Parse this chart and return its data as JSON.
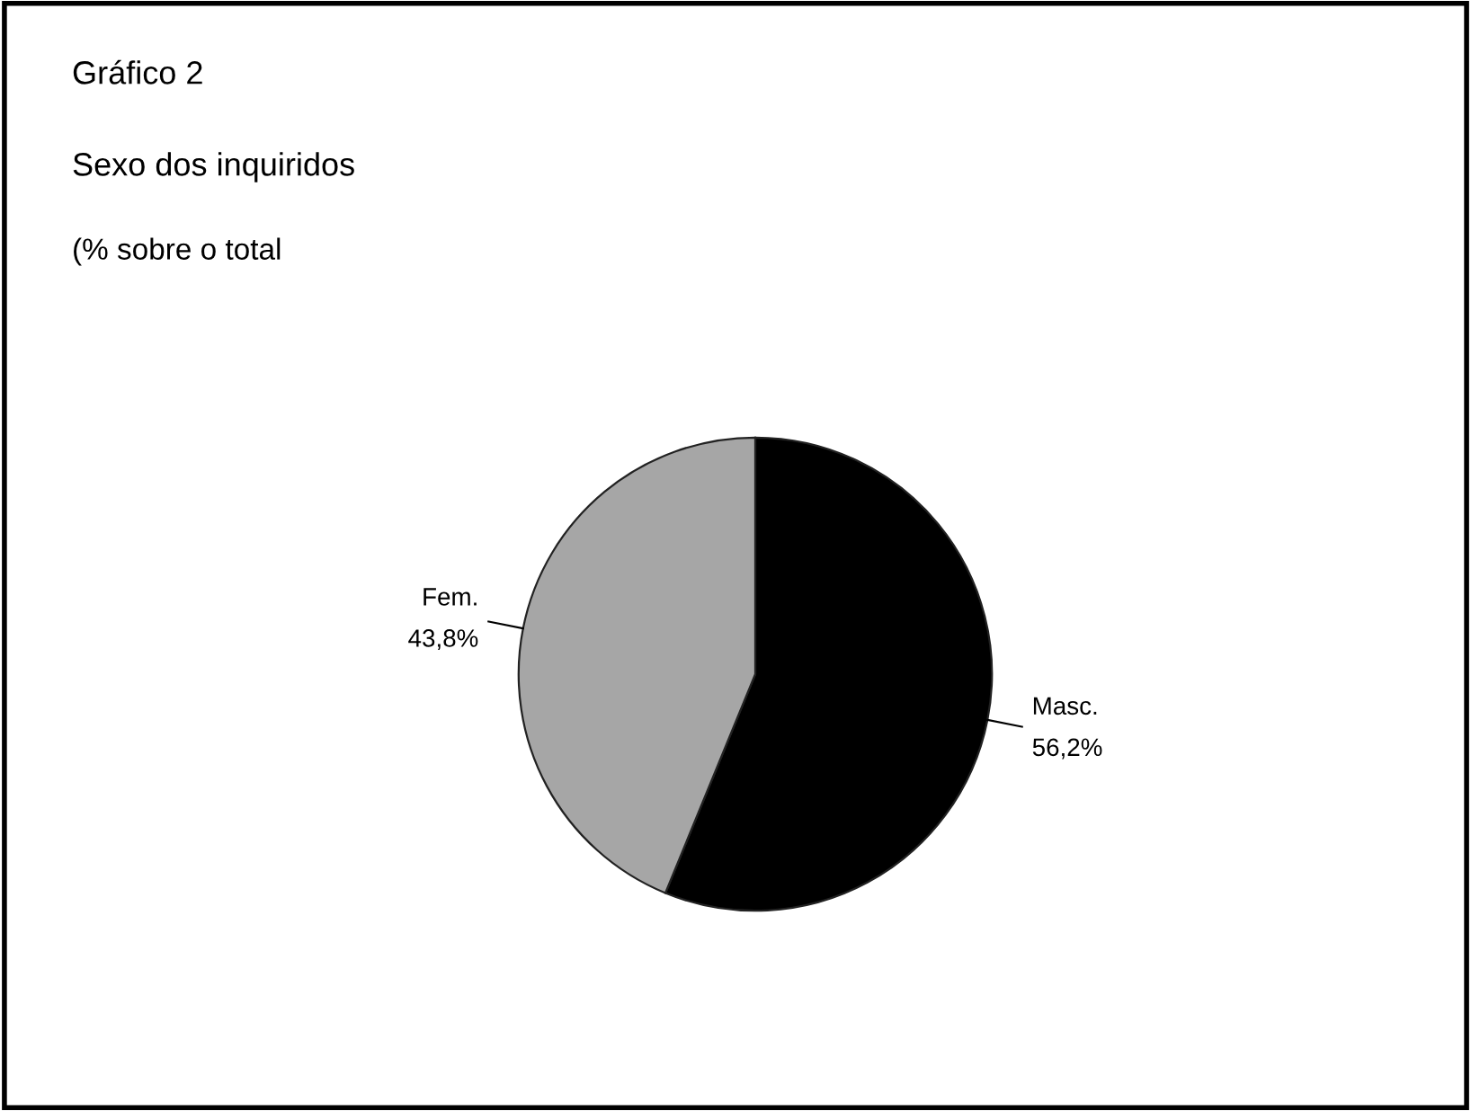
{
  "chart_data": {
    "type": "pie",
    "title": "Gráfico 2",
    "subtitle": "Sexo dos inquiridos",
    "annotations": [
      "(% sobre o total"
    ],
    "categories": [
      "Masc.",
      "Fem."
    ],
    "values": [
      56.2,
      43.8
    ],
    "value_labels": [
      "56,2%",
      "43,8%"
    ],
    "colors": [
      "#000000",
      "#a6a6a6"
    ],
    "legend": false
  }
}
